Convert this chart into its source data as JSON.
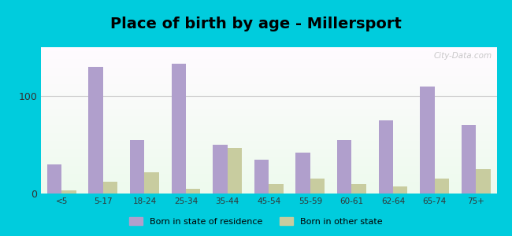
{
  "title": "Place of birth by age - Millersport",
  "categories": [
    "<5",
    "5-17",
    "18-24",
    "25-34",
    "35-44",
    "45-54",
    "55-59",
    "60-61",
    "62-64",
    "65-74",
    "75+"
  ],
  "born_in_state": [
    30,
    130,
    55,
    133,
    50,
    35,
    42,
    55,
    75,
    110,
    70
  ],
  "born_other_state": [
    3,
    12,
    22,
    5,
    47,
    10,
    15,
    10,
    7,
    15,
    25
  ],
  "bar_color_state": "#b09fcc",
  "bar_color_other": "#c8cc9f",
  "background_outer": "#00ccdd",
  "ylim": [
    0,
    150
  ],
  "yticks": [
    0,
    100
  ],
  "title_fontsize": 14,
  "legend_labels": [
    "Born in state of residence",
    "Born in other state"
  ],
  "watermark": "City-Data.com"
}
